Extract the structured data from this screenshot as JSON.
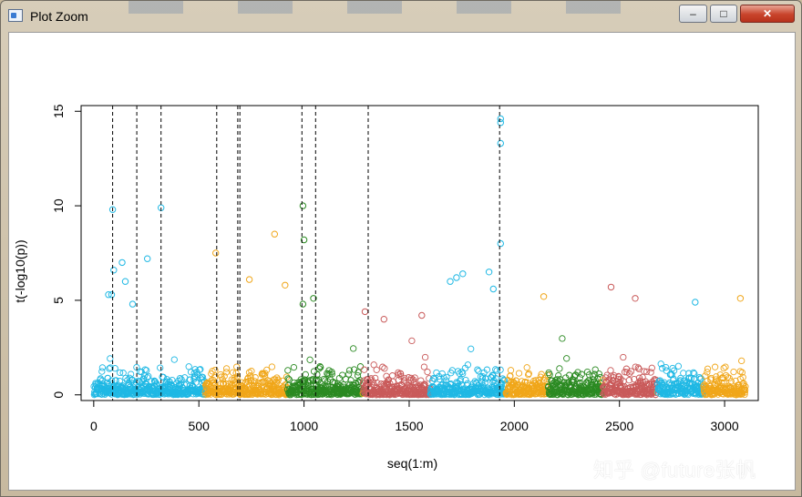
{
  "window": {
    "title": "Plot Zoom",
    "minimize_glyph": "–",
    "maximize_glyph": "□",
    "close_glyph": "✕"
  },
  "watermark": "知乎 @future张帆",
  "chart_data": {
    "type": "scatter",
    "title": "",
    "xlabel": "seq(1:m)",
    "ylabel": "t(-log10(p))",
    "xlim": [
      -60,
      3160
    ],
    "ylim": [
      -0.3,
      15.3
    ],
    "xticks": [
      0,
      500,
      1000,
      1500,
      2000,
      2500,
      3000
    ],
    "yticks": [
      0,
      5,
      10,
      15
    ],
    "marker": "open-circle",
    "segments": [
      {
        "start": 1,
        "end": 530,
        "color": "#1fb8e4"
      },
      {
        "start": 531,
        "end": 920,
        "color": "#f0a619"
      },
      {
        "start": 921,
        "end": 1280,
        "color": "#2b8a22"
      },
      {
        "start": 1281,
        "end": 1600,
        "color": "#c95a5a"
      },
      {
        "start": 1601,
        "end": 1960,
        "color": "#1fb8e4"
      },
      {
        "start": 1961,
        "end": 2160,
        "color": "#f0a619"
      },
      {
        "start": 2161,
        "end": 2420,
        "color": "#2b8a22"
      },
      {
        "start": 2421,
        "end": 2680,
        "color": "#c95a5a"
      },
      {
        "start": 2681,
        "end": 2900,
        "color": "#1fb8e4"
      },
      {
        "start": 2901,
        "end": 3100,
        "color": "#f0a619"
      }
    ],
    "vlines": [
      90,
      205,
      320,
      585,
      685,
      695,
      990,
      1055,
      1305,
      1930
    ],
    "notable_points": [
      {
        "x": 90,
        "y": 9.8
      },
      {
        "x": 320,
        "y": 9.9
      },
      {
        "x": 995,
        "y": 10.0
      },
      {
        "x": 1935,
        "y": 14.6
      },
      {
        "x": 1935,
        "y": 14.4
      },
      {
        "x": 1935,
        "y": 13.3
      },
      {
        "x": 1935,
        "y": 8.0
      },
      {
        "x": 1000,
        "y": 8.2
      },
      {
        "x": 860,
        "y": 8.5
      },
      {
        "x": 580,
        "y": 7.5
      },
      {
        "x": 255,
        "y": 7.2
      },
      {
        "x": 135,
        "y": 7.0
      },
      {
        "x": 95,
        "y": 6.6
      },
      {
        "x": 150,
        "y": 6.0
      },
      {
        "x": 740,
        "y": 6.1
      },
      {
        "x": 1755,
        "y": 6.4
      },
      {
        "x": 1725,
        "y": 6.2
      },
      {
        "x": 1695,
        "y": 6.0
      },
      {
        "x": 1880,
        "y": 6.5
      },
      {
        "x": 1900,
        "y": 5.6
      },
      {
        "x": 70,
        "y": 5.3
      },
      {
        "x": 85,
        "y": 5.3
      },
      {
        "x": 910,
        "y": 5.8
      },
      {
        "x": 1045,
        "y": 5.1
      },
      {
        "x": 2460,
        "y": 5.7
      },
      {
        "x": 2140,
        "y": 5.2
      },
      {
        "x": 2575,
        "y": 5.1
      },
      {
        "x": 3075,
        "y": 5.1
      },
      {
        "x": 2860,
        "y": 4.9
      },
      {
        "x": 1290,
        "y": 4.4
      },
      {
        "x": 995,
        "y": 4.8
      },
      {
        "x": 185,
        "y": 4.8
      },
      {
        "x": 1380,
        "y": 4.0
      },
      {
        "x": 1560,
        "y": 4.2
      }
    ],
    "background_points_note": "dense band of open circles between 0 and ~4 across all chromosome segments"
  }
}
